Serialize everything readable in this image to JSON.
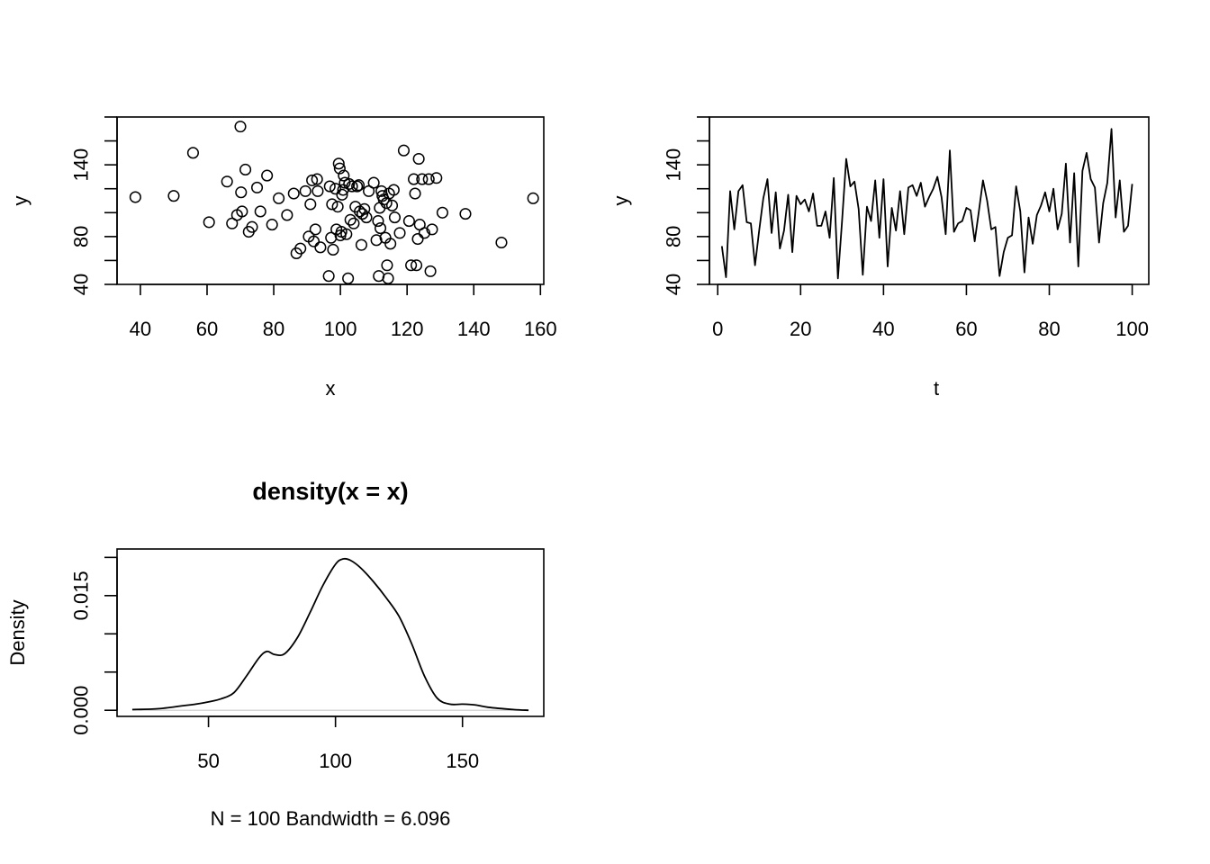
{
  "chart_data": [
    {
      "type": "scatter",
      "title": "",
      "xlabel": "x",
      "ylabel": "y",
      "xlim": [
        33,
        161
      ],
      "ylim": [
        40,
        180
      ],
      "xticks": [
        40,
        60,
        80,
        100,
        120,
        140,
        160
      ],
      "xtick_labels": [
        "40",
        "60",
        "80",
        "100",
        "120",
        "140",
        "160"
      ],
      "yticks": [
        40,
        60,
        80,
        100,
        120,
        140,
        160,
        180
      ],
      "ytick_labels": [
        "40",
        "",
        "80",
        "",
        "",
        "140",
        "",
        ""
      ],
      "grid": false,
      "points": [
        [
          38.5,
          113
        ],
        [
          50,
          114
        ],
        [
          55.8,
          150
        ],
        [
          60.6,
          92
        ],
        [
          66,
          126
        ],
        [
          67.5,
          91
        ],
        [
          69,
          98
        ],
        [
          70,
          172
        ],
        [
          70.2,
          117
        ],
        [
          70.5,
          101
        ],
        [
          71.5,
          136
        ],
        [
          72.5,
          84
        ],
        [
          73.5,
          88
        ],
        [
          75,
          121
        ],
        [
          76,
          101
        ],
        [
          78,
          131
        ],
        [
          79.5,
          90
        ],
        [
          81.5,
          112
        ],
        [
          84,
          98
        ],
        [
          86,
          116
        ],
        [
          86.8,
          66
        ],
        [
          88,
          70
        ],
        [
          89.5,
          118
        ],
        [
          90.5,
          80
        ],
        [
          91,
          107
        ],
        [
          91.5,
          127
        ],
        [
          92,
          76
        ],
        [
          92.5,
          86
        ],
        [
          93,
          128
        ],
        [
          93.2,
          118
        ],
        [
          94,
          71
        ],
        [
          96.5,
          47
        ],
        [
          96.8,
          122
        ],
        [
          97.2,
          79
        ],
        [
          97.5,
          107
        ],
        [
          97.8,
          69
        ],
        [
          98.5,
          120
        ],
        [
          98.8,
          86
        ],
        [
          99.2,
          105
        ],
        [
          99.5,
          141
        ],
        [
          99.8,
          137
        ],
        [
          100,
          81
        ],
        [
          100.3,
          84
        ],
        [
          100.5,
          115
        ],
        [
          100.8,
          119
        ],
        [
          101,
          131
        ],
        [
          101.3,
          125
        ],
        [
          101.8,
          82
        ],
        [
          102.3,
          45
        ],
        [
          102.6,
          124
        ],
        [
          103,
          94
        ],
        [
          103.5,
          122
        ],
        [
          104,
          91
        ],
        [
          104.5,
          105
        ],
        [
          105,
          122
        ],
        [
          105.5,
          123
        ],
        [
          105.8,
          101
        ],
        [
          106.3,
          73
        ],
        [
          106.6,
          99
        ],
        [
          107.2,
          103
        ],
        [
          107.8,
          96
        ],
        [
          108.5,
          118
        ],
        [
          110,
          125
        ],
        [
          110.8,
          77
        ],
        [
          111.3,
          93
        ],
        [
          111.5,
          47
        ],
        [
          111.8,
          104
        ],
        [
          112,
          87
        ],
        [
          112.3,
          118
        ],
        [
          112.6,
          114
        ],
        [
          113,
          111
        ],
        [
          113.5,
          79
        ],
        [
          113.8,
          108
        ],
        [
          114,
          56
        ],
        [
          114.3,
          45
        ],
        [
          114.6,
          116
        ],
        [
          115,
          74
        ],
        [
          115.5,
          106
        ],
        [
          116,
          119
        ],
        [
          116.3,
          96
        ],
        [
          117.8,
          83
        ],
        [
          119,
          152
        ],
        [
          120.6,
          93
        ],
        [
          121.2,
          56
        ],
        [
          122,
          128
        ],
        [
          122.4,
          116
        ],
        [
          122.8,
          56
        ],
        [
          123.2,
          78
        ],
        [
          123.5,
          145
        ],
        [
          123.8,
          90
        ],
        [
          124.5,
          128
        ],
        [
          125.2,
          83
        ],
        [
          126.5,
          128
        ],
        [
          127,
          51
        ],
        [
          127.5,
          86
        ],
        [
          128.8,
          129
        ],
        [
          130.6,
          100
        ],
        [
          137.5,
          99
        ],
        [
          148.3,
          75
        ],
        [
          157.8,
          112
        ]
      ]
    },
    {
      "type": "line",
      "title": "",
      "xlabel": "t",
      "ylabel": "y",
      "xlim": [
        -2,
        104
      ],
      "ylim": [
        40,
        180
      ],
      "xticks": [
        0,
        20,
        40,
        60,
        80,
        100
      ],
      "xtick_labels": [
        "0",
        "20",
        "40",
        "60",
        "80",
        "100"
      ],
      "yticks": [
        40,
        60,
        80,
        100,
        120,
        140,
        160,
        180
      ],
      "ytick_labels": [
        "40",
        "",
        "80",
        "",
        "",
        "140",
        "",
        ""
      ],
      "grid": false,
      "x": [
        1,
        2,
        3,
        4,
        5,
        6,
        7,
        8,
        9,
        10,
        11,
        12,
        13,
        14,
        15,
        16,
        17,
        18,
        19,
        20,
        21,
        22,
        23,
        24,
        25,
        26,
        27,
        28,
        29,
        30,
        31,
        32,
        33,
        34,
        35,
        36,
        37,
        38,
        39,
        40,
        41,
        42,
        43,
        44,
        45,
        46,
        47,
        48,
        49,
        50,
        51,
        52,
        53,
        54,
        55,
        56,
        57,
        58,
        59,
        60,
        61,
        62,
        63,
        64,
        65,
        66,
        67,
        68,
        69,
        70,
        71,
        72,
        73,
        74,
        75,
        76,
        77,
        78,
        79,
        80,
        81,
        82,
        83,
        84,
        85,
        86,
        87,
        88,
        89,
        90,
        91,
        92,
        93,
        94,
        95,
        96,
        97,
        98,
        99,
        100
      ],
      "y": [
        72,
        46,
        118,
        86,
        118,
        123,
        92,
        91,
        56,
        85,
        112,
        128,
        83,
        117,
        70,
        85,
        115,
        67,
        114,
        107,
        111,
        101,
        116,
        89,
        89,
        101,
        79,
        129,
        45,
        93,
        145,
        122,
        126,
        103,
        48,
        105,
        93,
        127,
        79,
        128,
        55,
        104,
        85,
        118,
        82,
        121,
        123,
        114,
        125,
        105,
        113,
        120,
        130,
        113,
        82,
        152,
        84,
        91,
        93,
        104,
        102,
        76,
        101,
        127,
        110,
        86,
        88,
        47,
        67,
        79,
        81,
        122,
        101,
        50,
        96,
        74,
        98,
        106,
        117,
        101,
        120,
        86,
        99,
        141,
        75,
        133,
        55,
        135,
        150,
        128,
        121,
        75,
        108,
        125,
        170,
        96,
        127,
        84,
        89,
        124
      ]
    },
    {
      "type": "line",
      "title": "density(x = x)",
      "xlabel": "N = 100   Bandwidth = 6.096",
      "ylabel": "Density",
      "xlim": [
        14,
        182
      ],
      "ylim": [
        -0.0008,
        0.0211
      ],
      "xticks": [
        50,
        100,
        150
      ],
      "xtick_labels": [
        "50",
        "100",
        "150"
      ],
      "yticks": [
        0.0,
        0.005,
        0.01,
        0.015,
        0.02
      ],
      "ytick_labels": [
        "0.000",
        "",
        "",
        "0.015",
        ""
      ],
      "grid": false,
      "x": [
        20,
        30,
        40,
        45,
        50,
        55,
        60,
        65,
        70,
        73,
        76,
        80,
        85,
        90,
        95,
        100,
        103,
        106,
        110,
        115,
        120,
        125,
        130,
        135,
        140,
        145,
        150,
        155,
        160,
        170,
        176
      ],
      "y": [
        0.0001,
        0.0002,
        0.0006,
        0.0008,
        0.0011,
        0.0015,
        0.0023,
        0.0045,
        0.0069,
        0.0077,
        0.0073,
        0.0074,
        0.0095,
        0.0128,
        0.0163,
        0.0191,
        0.0198,
        0.0196,
        0.0186,
        0.0168,
        0.0147,
        0.0123,
        0.0087,
        0.0045,
        0.0016,
        0.0008,
        0.0008,
        0.0007,
        0.0004,
        0.0001,
        0.0
      ]
    }
  ]
}
